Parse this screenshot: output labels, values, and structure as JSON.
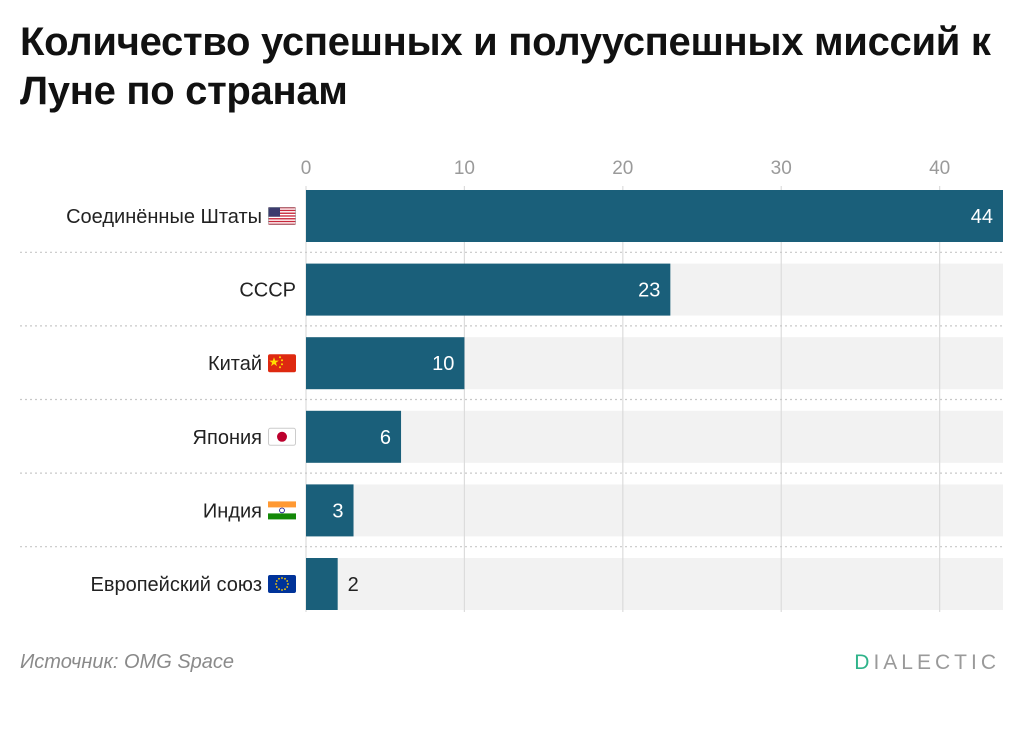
{
  "title": "Количество успешных и полууспешных миссий к Луне по странам",
  "source": "Источник: OMG Space",
  "brand": {
    "accent_letter": "D",
    "rest": "IALECTIC"
  },
  "colors": {
    "bar": "#1a5f7a",
    "track": "#f2f2f2",
    "grid": "#dcdcdc",
    "label_in": "#ffffff",
    "label_out": "#222222",
    "brand_accent": "#2fb38a"
  },
  "chart_data": {
    "type": "bar",
    "orientation": "horizontal",
    "title": "Количество успешных и полууспешных миссий к Луне по странам",
    "categories": [
      "Соединённые Штаты",
      "СССР",
      "Китай",
      "Япония",
      "Индия",
      "Европейский союз"
    ],
    "category_icons": [
      "us-flag-icon",
      null,
      "china-flag-icon",
      "japan-flag-icon",
      "india-flag-icon",
      "eu-flag-icon"
    ],
    "values": [
      44,
      23,
      10,
      6,
      3,
      2
    ],
    "xlim": [
      0,
      44
    ],
    "xticks": [
      0,
      10,
      20,
      30,
      40
    ],
    "xaxis_position": "top",
    "grid": true,
    "data_labels": true,
    "xlabel": "",
    "ylabel": ""
  }
}
